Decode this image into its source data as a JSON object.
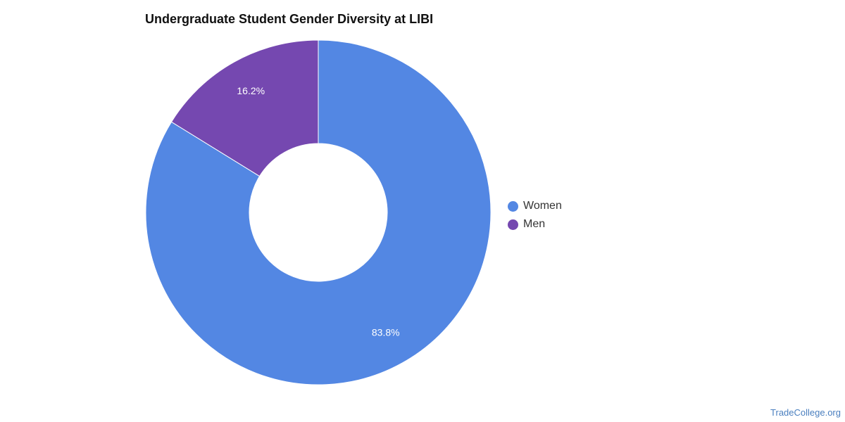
{
  "chart_data": {
    "type": "pie",
    "title": "Undergraduate Student Gender Diversity at LIBI",
    "donut": true,
    "legend_position": "right",
    "slices": [
      {
        "label": "Women",
        "value": 83.8,
        "value_label": "83.8%",
        "color": "#5387e3"
      },
      {
        "label": "Men",
        "value": 16.2,
        "value_label": "16.2%",
        "color": "#7548b0"
      }
    ]
  },
  "watermark": "TradeCollege.org"
}
